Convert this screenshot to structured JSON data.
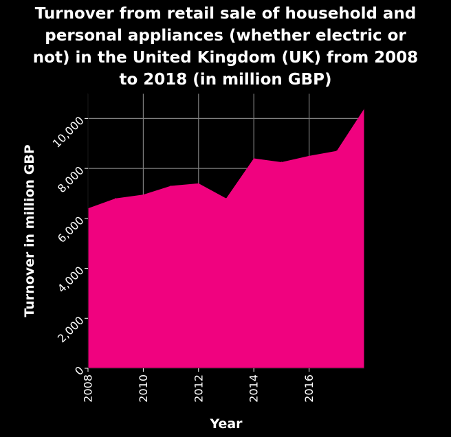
{
  "chart_data": {
    "type": "area",
    "title_lines": [
      "Turnover from retail sale of household and",
      "personal appliances (whether electric or",
      "not) in the United Kingdom (UK) from 2008",
      "to 2018 (in million GBP)"
    ],
    "xlabel": "Year",
    "ylabel": "Turnover in million GBP",
    "x": [
      2008,
      2009,
      2010,
      2011,
      2012,
      2013,
      2014,
      2015,
      2016,
      2017,
      2018
    ],
    "values": [
      6400,
      6800,
      6950,
      7300,
      7400,
      6800,
      8400,
      8250,
      8500,
      8700,
      10400
    ],
    "xlim": [
      2008,
      2018
    ],
    "ylim": [
      0,
      11000
    ],
    "xticks": [
      "2008",
      "2010",
      "2012",
      "2014",
      "2016"
    ],
    "yticks": [
      "0",
      "2,000",
      "4,000",
      "6,000",
      "8,000",
      "10,000"
    ],
    "grid": true,
    "colors": {
      "background": "#000000",
      "fill": "#f0027f",
      "grid": "#7f7f7f",
      "text": "#ffffff"
    }
  }
}
